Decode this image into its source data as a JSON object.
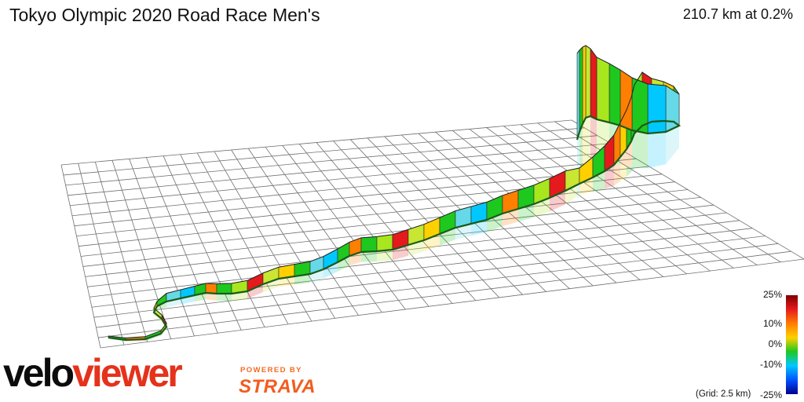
{
  "header": {
    "title": "Tokyo Olympic 2020 Road Race Men's",
    "stats": "210.7 km at 0.2%"
  },
  "legend": {
    "labels": [
      "25%",
      "10%",
      "0%",
      "-10%",
      "-25%"
    ],
    "grid_note": "(Grid: 2.5 km)",
    "gradient_colors": [
      "#7f0000",
      "#e41a1c",
      "#ff7f00",
      "#ffd000",
      "#1ec81e",
      "#00c8ff",
      "#0050ff",
      "#00008b"
    ]
  },
  "branding": {
    "logo_part1": "velo",
    "logo_part2": "viewer",
    "powered_by": "POWERED BY",
    "strava": "STRAVA"
  },
  "colors": {
    "grid": "#707070",
    "route_line": "#1a5a1a",
    "logo_red": "#e5321b",
    "strava_orange": "#f25d1f"
  }
}
